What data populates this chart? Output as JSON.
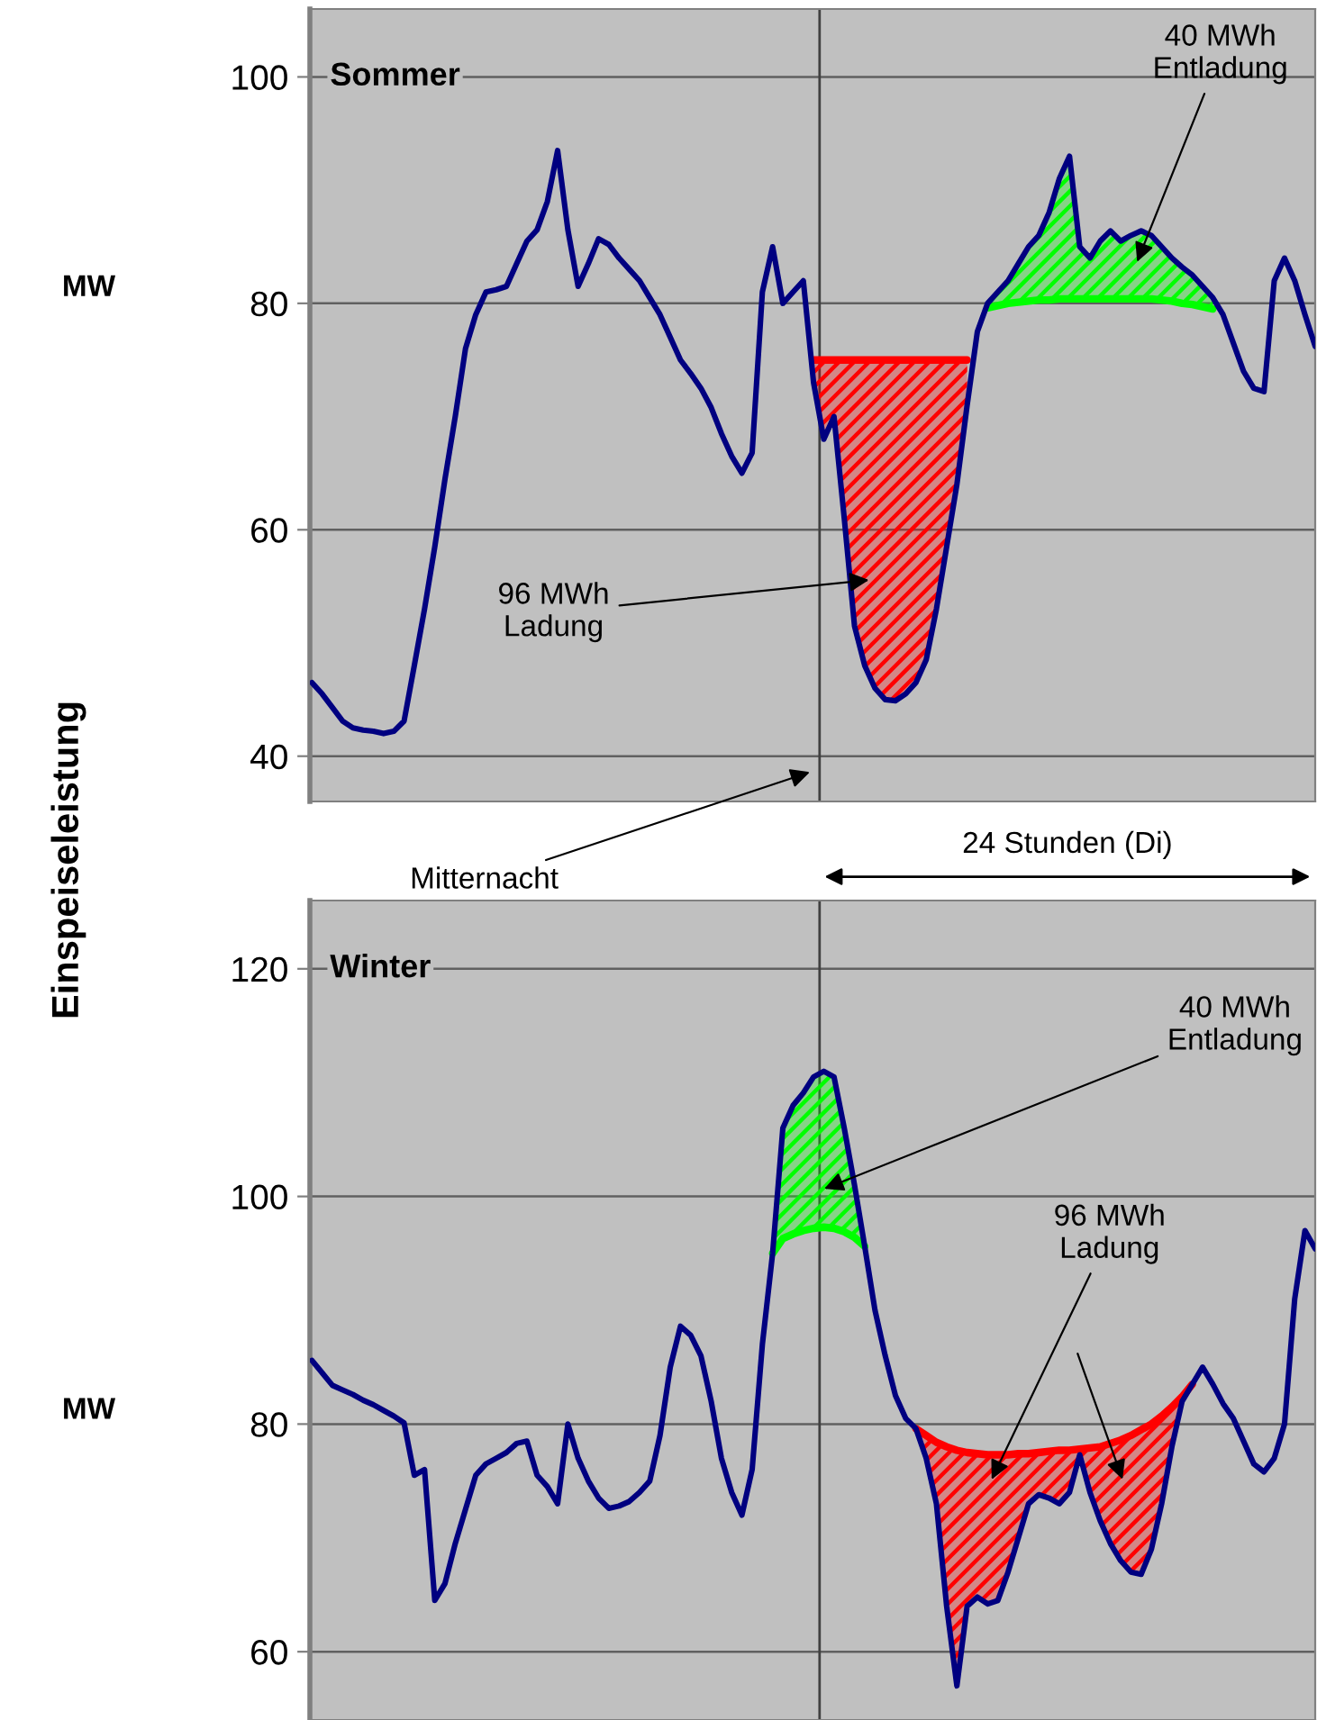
{
  "chart_data": [
    {
      "type": "line",
      "title": "Sommer",
      "ylabel": "MW",
      "ylim": [
        36,
        106
      ],
      "yticks": [
        40,
        60,
        80,
        100
      ],
      "grid": "y",
      "tick_labels": "y",
      "categories": [
        null,
        null,
        null,
        null,
        null,
        null,
        null,
        null,
        null,
        null,
        null,
        null,
        null,
        null,
        null,
        null,
        null,
        null,
        null,
        null,
        null,
        null,
        null,
        null,
        null,
        null,
        null,
        null,
        null,
        null,
        null,
        null,
        null,
        null,
        null,
        null,
        null,
        null,
        null,
        null,
        null,
        null,
        null,
        null,
        null,
        null,
        null,
        null,
        null,
        null,
        null,
        null,
        null,
        null,
        null,
        null,
        null,
        null,
        null,
        null,
        null,
        null,
        null,
        null,
        null,
        null,
        null,
        null,
        null,
        null,
        null,
        null,
        null,
        null,
        null,
        null,
        null,
        null,
        null,
        null,
        null,
        null,
        null,
        null,
        null,
        null,
        null,
        null,
        null,
        null,
        null,
        null,
        null,
        null,
        null,
        null,
        null,
        null,
        null
      ],
      "annotations": [
        "Einspeiseleistung",
        "24 Stunden (Di)",
        "Mitternacht",
        "96 MWh\nLadung",
        "40 MWh\nEntladung"
      ],
      "series": [
        {
          "color": "#000080",
          "values": [
            46.5,
            45.5,
            44.3,
            43.1,
            42.5,
            42.3,
            42.2,
            42.0,
            42.2,
            43.1,
            48,
            53,
            58.5,
            64.5,
            70,
            76,
            79,
            81,
            81.2,
            81.5,
            83.5,
            85.5,
            86.5,
            89,
            93.5,
            86.5,
            81.5,
            83.5,
            85.7,
            85.2,
            84,
            83,
            82,
            80.5,
            79,
            77,
            75,
            73.8,
            72.5,
            70.8,
            68.5,
            66.5,
            65,
            66.8,
            81,
            85,
            80,
            81,
            82,
            73,
            68,
            70,
            61,
            51.5,
            48,
            46,
            45,
            44.9,
            45.5,
            46.5,
            48.5,
            53,
            58.5,
            64,
            71,
            77.5,
            80,
            81,
            82,
            83.5,
            85,
            86,
            88,
            91,
            93,
            85,
            84,
            85.5,
            86.4,
            85.5,
            86,
            86.4,
            86,
            85,
            84,
            83.2,
            82.5,
            81.5,
            80.5,
            79,
            76.5,
            74,
            72.5,
            72.2,
            82,
            84,
            82,
            79,
            76.2
          ]
        },
        {
          "color": "#ff0000",
          "values": [
            null,
            null,
            null,
            null,
            null,
            null,
            null,
            null,
            null,
            null,
            null,
            null,
            null,
            null,
            null,
            null,
            null,
            null,
            null,
            null,
            null,
            null,
            null,
            null,
            null,
            null,
            null,
            null,
            null,
            null,
            null,
            null,
            null,
            null,
            null,
            null,
            null,
            null,
            null,
            null,
            null,
            null,
            null,
            null,
            null,
            null,
            null,
            null,
            null,
            75,
            75,
            75,
            75,
            75,
            75,
            75,
            75,
            75,
            75,
            75,
            75,
            75,
            75,
            75,
            75,
            null,
            null,
            null,
            null,
            null,
            null,
            null,
            null,
            null,
            null,
            null,
            null,
            null,
            null,
            null,
            null,
            null,
            null,
            null,
            null,
            null,
            null,
            null,
            null,
            null,
            null,
            null,
            null,
            null,
            null,
            null,
            null,
            null,
            null
          ],
          "lower": [
            null,
            null,
            null,
            null,
            null,
            null,
            null,
            null,
            null,
            null,
            null,
            null,
            null,
            null,
            null,
            null,
            null,
            null,
            null,
            null,
            null,
            null,
            null,
            null,
            null,
            null,
            null,
            null,
            null,
            null,
            null,
            null,
            null,
            null,
            null,
            null,
            null,
            null,
            null,
            null,
            null,
            null,
            null,
            null,
            null,
            null,
            null,
            null,
            null,
            73,
            68,
            70,
            61,
            51.5,
            48,
            46,
            45,
            44.9,
            45.5,
            46.5,
            48.5,
            53,
            58.5,
            64,
            71,
            null,
            null,
            null,
            null,
            null,
            null,
            null,
            null,
            null,
            null,
            null,
            null,
            null,
            null,
            null,
            null,
            null,
            null,
            null,
            null,
            null,
            null,
            null,
            null,
            null,
            null,
            null,
            null,
            null,
            null,
            null,
            null,
            null,
            null
          ],
          "upper": [
            null,
            null,
            null,
            null,
            null,
            null,
            null,
            null,
            null,
            null,
            null,
            null,
            null,
            null,
            null,
            null,
            null,
            null,
            null,
            null,
            null,
            null,
            null,
            null,
            null,
            null,
            null,
            null,
            null,
            null,
            null,
            null,
            null,
            null,
            null,
            null,
            null,
            null,
            null,
            null,
            null,
            null,
            null,
            null,
            null,
            null,
            null,
            null,
            null,
            75,
            75,
            75,
            75,
            75,
            75,
            75,
            75,
            75,
            75,
            75,
            75,
            75,
            75,
            75,
            75,
            null,
            null,
            null,
            null,
            null,
            null,
            null,
            null,
            null,
            null,
            null,
            null,
            null,
            null,
            null,
            null,
            null,
            null,
            null,
            null,
            null,
            null,
            null,
            null,
            null,
            null,
            null,
            null,
            null,
            null,
            null,
            null,
            null,
            null
          ]
        },
        {
          "color": "#00ff00",
          "values": [
            null,
            null,
            null,
            null,
            null,
            null,
            null,
            null,
            null,
            null,
            null,
            null,
            null,
            null,
            null,
            null,
            null,
            null,
            null,
            null,
            null,
            null,
            null,
            null,
            null,
            null,
            null,
            null,
            null,
            null,
            null,
            null,
            null,
            null,
            null,
            null,
            null,
            null,
            null,
            null,
            null,
            null,
            null,
            null,
            null,
            null,
            null,
            null,
            null,
            null,
            null,
            null,
            null,
            null,
            null,
            null,
            null,
            null,
            null,
            null,
            null,
            null,
            null,
            null,
            null,
            null,
            79.6,
            79.8,
            80.0,
            80.1,
            80.2,
            80.3,
            80.3,
            80.4,
            80.4,
            80.4,
            80.4,
            80.4,
            80.4,
            80.4,
            80.4,
            80.4,
            80.4,
            80.3,
            80.2,
            80.0,
            79.9,
            79.7,
            79.5,
            null,
            null,
            null,
            null,
            null,
            null,
            null,
            null,
            null,
            null
          ],
          "lower": [
            null,
            null,
            null,
            null,
            null,
            null,
            null,
            null,
            null,
            null,
            null,
            null,
            null,
            null,
            null,
            null,
            null,
            null,
            null,
            null,
            null,
            null,
            null,
            null,
            null,
            null,
            null,
            null,
            null,
            null,
            null,
            null,
            null,
            null,
            null,
            null,
            null,
            null,
            null,
            null,
            null,
            null,
            null,
            null,
            null,
            null,
            null,
            null,
            null,
            null,
            null,
            null,
            null,
            null,
            null,
            null,
            null,
            null,
            null,
            null,
            null,
            null,
            null,
            null,
            null,
            null,
            79.6,
            79.8,
            80.0,
            80.1,
            80.2,
            80.3,
            80.3,
            80.4,
            80.4,
            80.4,
            80.4,
            80.4,
            80.4,
            80.4,
            80.4,
            80.4,
            80.4,
            80.3,
            80.2,
            80.0,
            79.9,
            79.7,
            79.5,
            null,
            null,
            null,
            null,
            null,
            null,
            null,
            null,
            null,
            null
          ],
          "upper": [
            null,
            null,
            null,
            null,
            null,
            null,
            null,
            null,
            null,
            null,
            null,
            null,
            null,
            null,
            null,
            null,
            null,
            null,
            null,
            null,
            null,
            null,
            null,
            null,
            null,
            null,
            null,
            null,
            null,
            null,
            null,
            null,
            null,
            null,
            null,
            null,
            null,
            null,
            null,
            null,
            null,
            null,
            null,
            null,
            null,
            null,
            null,
            null,
            null,
            null,
            null,
            null,
            null,
            null,
            null,
            null,
            null,
            null,
            null,
            null,
            null,
            null,
            null,
            null,
            null,
            null,
            80,
            81,
            82,
            83.5,
            85,
            86,
            88,
            91,
            93,
            85,
            84,
            85.5,
            86.4,
            85.5,
            86,
            86.4,
            86,
            85,
            84,
            83.2,
            82.5,
            81.5,
            80.5,
            null,
            null,
            null,
            null,
            null,
            null,
            null,
            null,
            null,
            null
          ]
        }
      ]
    },
    {
      "type": "line",
      "title": "Winter",
      "ylabel": "MW",
      "ylim": [
        54,
        126
      ],
      "yticks": [
        60,
        80,
        100,
        120
      ],
      "grid": "y",
      "tick_labels": "y",
      "categories": [
        null,
        null,
        null,
        null,
        null,
        null,
        null,
        null,
        null,
        null,
        null,
        null,
        null,
        null,
        null,
        null,
        null,
        null,
        null,
        null,
        null,
        null,
        null,
        null,
        null,
        null,
        null,
        null,
        null,
        null,
        null,
        null,
        null,
        null,
        null,
        null,
        null,
        null,
        null,
        null,
        null,
        null,
        null,
        null,
        null,
        null,
        null,
        null,
        null,
        null,
        null,
        null,
        null,
        null,
        null,
        null,
        null,
        null,
        null,
        null,
        null,
        null,
        null,
        null,
        null,
        null,
        null,
        null,
        null,
        null,
        null,
        null,
        null,
        null,
        null,
        null,
        null,
        null,
        null,
        null,
        null,
        null,
        null,
        null,
        null,
        null,
        null,
        null,
        null,
        null,
        null,
        null,
        null,
        null,
        null,
        null,
        null,
        null,
        null
      ],
      "annotations": [
        "40 MWh\nEntladung",
        "96 MWh\nLadung"
      ],
      "series": [
        {
          "color": "#000080",
          "values": [
            85.6,
            84.5,
            83.4,
            83,
            82.6,
            82.1,
            81.7,
            81.2,
            80.7,
            80.1,
            75.5,
            76,
            64.5,
            66,
            69.5,
            72.5,
            75.5,
            76.5,
            77,
            77.5,
            78.3,
            78.5,
            75.5,
            74.5,
            73,
            80,
            77,
            75,
            73.5,
            72.6,
            72.8,
            73.2,
            74,
            75,
            79,
            85,
            88.6,
            87.8,
            86,
            82,
            77,
            74,
            72,
            76,
            87,
            95,
            106,
            108,
            109.1,
            110.5,
            111,
            110.5,
            106,
            101,
            95.6,
            90,
            86,
            82.5,
            80.5,
            79.6,
            77,
            73,
            64,
            57,
            64,
            64.8,
            64.2,
            64.5,
            67,
            70,
            73,
            73.8,
            73.5,
            73,
            74,
            77.3,
            74,
            71.5,
            69.5,
            68,
            67,
            66.8,
            69,
            73,
            78,
            82,
            83.5,
            85,
            83.5,
            81.8,
            80.5,
            78.5,
            76.5,
            75.8,
            77,
            80,
            91,
            97,
            95.4
          ]
        },
        {
          "color": "#00ff00",
          "values": [
            null,
            null,
            null,
            null,
            null,
            null,
            null,
            null,
            null,
            null,
            null,
            null,
            null,
            null,
            null,
            null,
            null,
            null,
            null,
            null,
            null,
            null,
            null,
            null,
            null,
            null,
            null,
            null,
            null,
            null,
            null,
            null,
            null,
            null,
            null,
            null,
            null,
            null,
            null,
            null,
            null,
            null,
            null,
            null,
            null,
            95,
            96.3,
            96.7,
            97.0,
            97.2,
            97.3,
            97.2,
            96.9,
            96.4,
            95.6,
            null,
            null,
            null,
            null,
            null,
            null,
            null,
            null,
            null,
            null,
            null,
            null,
            null,
            null,
            null,
            null,
            null,
            null,
            null,
            null,
            null,
            null,
            null,
            null,
            null,
            null,
            null,
            null,
            null,
            null,
            null,
            null,
            null,
            null,
            null,
            null,
            null,
            null,
            null,
            null,
            null,
            null,
            null,
            null
          ],
          "lower": [
            null,
            null,
            null,
            null,
            null,
            null,
            null,
            null,
            null,
            null,
            null,
            null,
            null,
            null,
            null,
            null,
            null,
            null,
            null,
            null,
            null,
            null,
            null,
            null,
            null,
            null,
            null,
            null,
            null,
            null,
            null,
            null,
            null,
            null,
            null,
            null,
            null,
            null,
            null,
            null,
            null,
            null,
            null,
            null,
            null,
            95,
            96.3,
            96.7,
            97.0,
            97.2,
            97.3,
            97.2,
            96.9,
            96.4,
            95.6,
            null,
            null,
            null,
            null,
            null,
            null,
            null,
            null,
            null,
            null,
            null,
            null,
            null,
            null,
            null,
            null,
            null,
            null,
            null,
            null,
            null,
            null,
            null,
            null,
            null,
            null,
            null,
            null,
            null,
            null,
            null,
            null,
            null,
            null,
            null,
            null,
            null,
            null,
            null,
            null,
            null,
            null,
            null,
            null
          ],
          "upper": [
            null,
            null,
            null,
            null,
            null,
            null,
            null,
            null,
            null,
            null,
            null,
            null,
            null,
            null,
            null,
            null,
            null,
            null,
            null,
            null,
            null,
            null,
            null,
            null,
            null,
            null,
            null,
            null,
            null,
            null,
            null,
            null,
            null,
            null,
            null,
            null,
            null,
            null,
            null,
            null,
            null,
            null,
            null,
            null,
            null,
            95,
            106,
            108,
            109.1,
            110.5,
            111,
            110.5,
            106,
            101,
            95.6,
            null,
            null,
            null,
            null,
            null,
            null,
            null,
            null,
            null,
            null,
            null,
            null,
            null,
            null,
            null,
            null,
            null,
            null,
            null,
            null,
            null,
            null,
            null,
            null,
            null,
            null,
            null,
            null,
            null,
            null,
            null,
            null,
            null,
            null,
            null,
            null,
            null,
            null,
            null,
            null,
            null,
            null,
            null,
            null
          ]
        },
        {
          "color": "#ff0000",
          "values": [
            null,
            null,
            null,
            null,
            null,
            null,
            null,
            null,
            null,
            null,
            null,
            null,
            null,
            null,
            null,
            null,
            null,
            null,
            null,
            null,
            null,
            null,
            null,
            null,
            null,
            null,
            null,
            null,
            null,
            null,
            null,
            null,
            null,
            null,
            null,
            null,
            null,
            null,
            null,
            null,
            null,
            null,
            null,
            null,
            null,
            null,
            null,
            null,
            null,
            null,
            null,
            null,
            null,
            null,
            null,
            null,
            null,
            null,
            null,
            79.6,
            79,
            78.4,
            78,
            77.7,
            77.5,
            77.4,
            77.3,
            77.3,
            77.3,
            77.4,
            77.4,
            77.5,
            77.6,
            77.7,
            77.7,
            77.8,
            77.9,
            78.0,
            78.3,
            78.6,
            79.0,
            79.5,
            80.0,
            80.7,
            81.5,
            82.4,
            83.5,
            null,
            null,
            null,
            null,
            null,
            null,
            null,
            null,
            null,
            null,
            null,
            null
          ],
          "lower": [
            null,
            null,
            null,
            null,
            null,
            null,
            null,
            null,
            null,
            null,
            null,
            null,
            null,
            null,
            null,
            null,
            null,
            null,
            null,
            null,
            null,
            null,
            null,
            null,
            null,
            null,
            null,
            null,
            null,
            null,
            null,
            null,
            null,
            null,
            null,
            null,
            null,
            null,
            null,
            null,
            null,
            null,
            null,
            null,
            null,
            null,
            null,
            null,
            null,
            null,
            null,
            null,
            null,
            null,
            null,
            null,
            null,
            null,
            null,
            79.6,
            77,
            73,
            64,
            57,
            64,
            64.8,
            64.2,
            64.5,
            67,
            70,
            73,
            73.8,
            73.5,
            73,
            74,
            77.3,
            74,
            71.5,
            69.5,
            68,
            67,
            66.8,
            69,
            73,
            78,
            82,
            83.5,
            null,
            null,
            null,
            null,
            null,
            null,
            null,
            null,
            null,
            null,
            null,
            null
          ],
          "upper": [
            null,
            null,
            null,
            null,
            null,
            null,
            null,
            null,
            null,
            null,
            null,
            null,
            null,
            null,
            null,
            null,
            null,
            null,
            null,
            null,
            null,
            null,
            null,
            null,
            null,
            null,
            null,
            null,
            null,
            null,
            null,
            null,
            null,
            null,
            null,
            null,
            null,
            null,
            null,
            null,
            null,
            null,
            null,
            null,
            null,
            null,
            null,
            null,
            null,
            null,
            null,
            null,
            null,
            null,
            null,
            null,
            null,
            null,
            null,
            79.6,
            79,
            78.4,
            78,
            77.7,
            77.5,
            77.4,
            77.3,
            77.3,
            77.3,
            77.4,
            77.4,
            77.5,
            77.6,
            77.7,
            77.7,
            77.8,
            77.9,
            78.0,
            78.3,
            78.6,
            79.0,
            79.5,
            80.0,
            80.7,
            81.5,
            82.4,
            83.5,
            null,
            null,
            null,
            null,
            null,
            null,
            null,
            null,
            null,
            null,
            null,
            null
          ]
        }
      ]
    }
  ]
}
